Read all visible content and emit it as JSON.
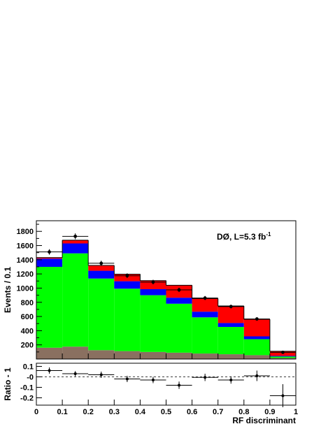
{
  "chart_data": [
    {
      "type": "bar",
      "stacked": true,
      "bin_edges": [
        0,
        0.1,
        0.2,
        0.3,
        0.4,
        0.5,
        0.6,
        0.7,
        0.8,
        0.9,
        1.0
      ],
      "series": [
        {
          "color": "#8a7060",
          "values": [
            160,
            175,
            125,
            112,
            100,
            90,
            78,
            68,
            55,
            15
          ]
        },
        {
          "color": "#00ff00",
          "values": [
            1140,
            1315,
            1010,
            880,
            800,
            690,
            510,
            385,
            225,
            20
          ]
        },
        {
          "color": "#0000ff",
          "values": [
            115,
            140,
            110,
            105,
            85,
            85,
            80,
            55,
            40,
            10
          ]
        },
        {
          "color": "#ff0000",
          "values": [
            15,
            45,
            75,
            100,
            120,
            175,
            185,
            240,
            240,
            65
          ]
        }
      ],
      "data_points": {
        "x": [
          0.05,
          0.15,
          0.25,
          0.35,
          0.45,
          0.55,
          0.65,
          0.75,
          0.85,
          0.95
        ],
        "y": [
          1510,
          1730,
          1350,
          1175,
          1085,
          975,
          860,
          740,
          565,
          95
        ],
        "yerr": [
          39,
          42,
          37,
          34,
          33,
          31,
          29,
          27,
          24,
          10
        ]
      },
      "ylabel": "Events / 0.1",
      "ylim": [
        0,
        1950
      ],
      "yticks": [
        "200",
        "400",
        "600",
        "800",
        "1000",
        "1200",
        "1400",
        "1600",
        "1800"
      ],
      "annotation": {
        "text": "DØ, L=5.3 fb",
        "sup": "-1"
      }
    },
    {
      "type": "scatter",
      "x": [
        0.05,
        0.15,
        0.25,
        0.35,
        0.45,
        0.55,
        0.65,
        0.75,
        0.85,
        0.95
      ],
      "y": [
        0.06,
        0.03,
        0.02,
        -0.02,
        -0.03,
        -0.08,
        -0.005,
        -0.03,
        0.01,
        -0.18
      ],
      "yerr": [
        0.03,
        0.025,
        0.03,
        0.03,
        0.03,
        0.035,
        0.035,
        0.035,
        0.05,
        0.11
      ],
      "ylabel": "Ratio - 1",
      "xlabel": "RF discriminant",
      "ylim": [
        -0.27,
        0.13
      ],
      "xticks": [
        "0",
        "0.1",
        "0.2",
        "0.3",
        "0.4",
        "0.5",
        "0.6",
        "0.7",
        "0.8",
        "0.9",
        "1"
      ],
      "yticks": [
        "-0.2",
        "-0.1",
        "-0",
        "0.1"
      ]
    }
  ]
}
